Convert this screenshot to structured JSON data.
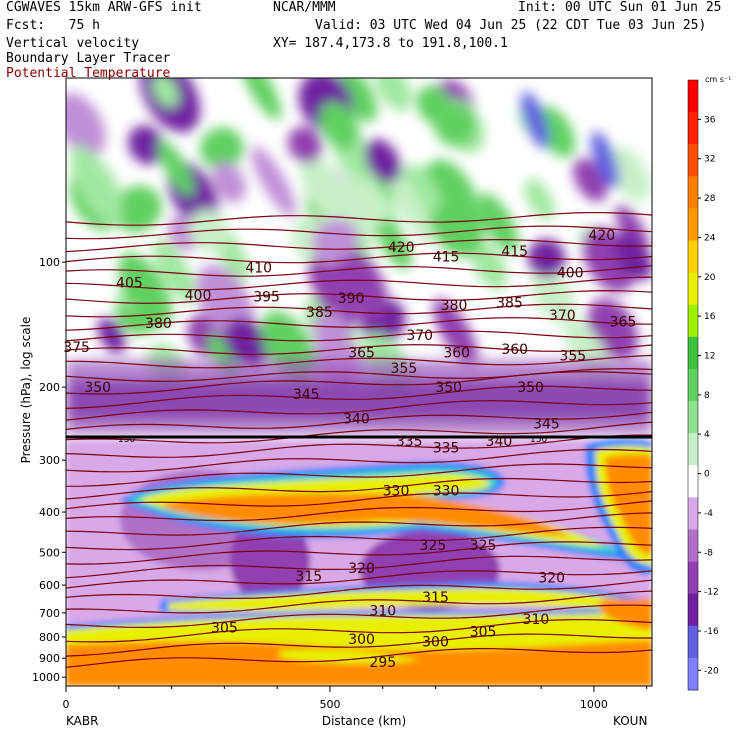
{
  "header": {
    "model": "CGWAVES 15km ARW-GFS init",
    "fcst": "Fcst:   75 h",
    "field1": "Vertical velocity",
    "field2": "Boundary Layer Tracer",
    "field3": "Potential Temperature",
    "org": "NCAR/MMM",
    "init": "Init: 00 UTC Sun 01 Jun 25",
    "valid": "Valid: 03 UTC Wed 04 Jun 25 (22 CDT Tue 03 Jun 25)",
    "xy": "XY= 187.4,173.8 to 191.8,100.1"
  },
  "colors": {
    "theta": "#7a0010",
    "ramp": [
      "#8080ff",
      "#6060e0",
      "#7020a0",
      "#9040b0",
      "#b070c8",
      "#d8a8e8",
      "#ffffff",
      "#c8f0c8",
      "#90e090",
      "#60d060",
      "#40c040",
      "#a0f000",
      "#e8f000",
      "#ffd000",
      "#ff9900",
      "#ff8000",
      "#ff5000",
      "#ff2000",
      "#ff0000"
    ]
  },
  "chart_data": {
    "type": "heatmap",
    "ylabel": "Pressure (hPa), log scale",
    "xlabel": "Distance (km)",
    "x_ticks": [
      0,
      500,
      1000
    ],
    "x_tick_labels": [
      "0",
      "500",
      "1000"
    ],
    "xlim": [
      0,
      1110
    ],
    "y_ticks": [
      100,
      200,
      300,
      400,
      500,
      600,
      700,
      800,
      900,
      1000
    ],
    "y_tick_labels": [
      "100",
      "200",
      "300",
      "400",
      "500",
      "600",
      "700",
      "800",
      "900",
      "1000"
    ],
    "y_log_scale": true,
    "endpoint_left": "KABR",
    "endpoint_right": "KOUN",
    "colorbar": {
      "unit": "cm s⁻¹",
      "tick_values": [
        -20,
        -16,
        -12,
        -8,
        -4,
        0,
        4,
        8,
        12,
        16,
        20,
        24,
        28,
        32,
        36
      ],
      "tick_labels": [
        "-20",
        "-16",
        "-12",
        "-8",
        "-4",
        "0",
        "4",
        "8",
        "12",
        "16",
        "20",
        "24",
        "28",
        "32",
        "36"
      ]
    },
    "tropopause_label": "150",
    "theta_labels": [
      {
        "x": 20,
        "p": 160,
        "label": "375"
      },
      {
        "x": 60,
        "p": 200,
        "label": "350"
      },
      {
        "x": 120,
        "p": 112,
        "label": "405"
      },
      {
        "x": 175,
        "p": 140,
        "label": "380"
      },
      {
        "x": 250,
        "p": 120,
        "label": "400"
      },
      {
        "x": 365,
        "p": 103,
        "label": "410"
      },
      {
        "x": 380,
        "p": 121,
        "label": "395"
      },
      {
        "x": 480,
        "p": 132,
        "label": "385"
      },
      {
        "x": 540,
        "p": 122,
        "label": "390"
      },
      {
        "x": 635,
        "p": 92,
        "label": "420"
      },
      {
        "x": 720,
        "p": 97,
        "label": "415"
      },
      {
        "x": 850,
        "p": 94,
        "label": "415"
      },
      {
        "x": 1015,
        "p": 86,
        "label": "420"
      },
      {
        "x": 955,
        "p": 106,
        "label": "400"
      },
      {
        "x": 840,
        "p": 125,
        "label": "385"
      },
      {
        "x": 735,
        "p": 127,
        "label": "380"
      },
      {
        "x": 940,
        "p": 134,
        "label": "370"
      },
      {
        "x": 1055,
        "p": 139,
        "label": "365"
      },
      {
        "x": 670,
        "p": 150,
        "label": "370"
      },
      {
        "x": 560,
        "p": 165,
        "label": "365"
      },
      {
        "x": 740,
        "p": 165,
        "label": "360"
      },
      {
        "x": 850,
        "p": 162,
        "label": "360"
      },
      {
        "x": 960,
        "p": 168,
        "label": "355"
      },
      {
        "x": 640,
        "p": 180,
        "label": "355"
      },
      {
        "x": 725,
        "p": 200,
        "label": "350"
      },
      {
        "x": 880,
        "p": 200,
        "label": "350"
      },
      {
        "x": 455,
        "p": 208,
        "label": "345"
      },
      {
        "x": 910,
        "p": 245,
        "label": "345"
      },
      {
        "x": 550,
        "p": 238,
        "label": "340"
      },
      {
        "x": 820,
        "p": 270,
        "label": "340"
      },
      {
        "x": 650,
        "p": 270,
        "label": "335"
      },
      {
        "x": 720,
        "p": 280,
        "label": "335"
      },
      {
        "x": 625,
        "p": 355,
        "label": "330"
      },
      {
        "x": 720,
        "p": 355,
        "label": "330"
      },
      {
        "x": 695,
        "p": 480,
        "label": "325"
      },
      {
        "x": 790,
        "p": 480,
        "label": "325"
      },
      {
        "x": 560,
        "p": 545,
        "label": "320"
      },
      {
        "x": 920,
        "p": 575,
        "label": "320"
      },
      {
        "x": 460,
        "p": 570,
        "label": "315"
      },
      {
        "x": 700,
        "p": 640,
        "label": "315"
      },
      {
        "x": 600,
        "p": 690,
        "label": "310"
      },
      {
        "x": 890,
        "p": 725,
        "label": "310"
      },
      {
        "x": 300,
        "p": 760,
        "label": "305"
      },
      {
        "x": 790,
        "p": 775,
        "label": "305"
      },
      {
        "x": 560,
        "p": 810,
        "label": "300"
      },
      {
        "x": 700,
        "p": 820,
        "label": "300"
      },
      {
        "x": 600,
        "p": 920,
        "label": "295"
      }
    ]
  }
}
